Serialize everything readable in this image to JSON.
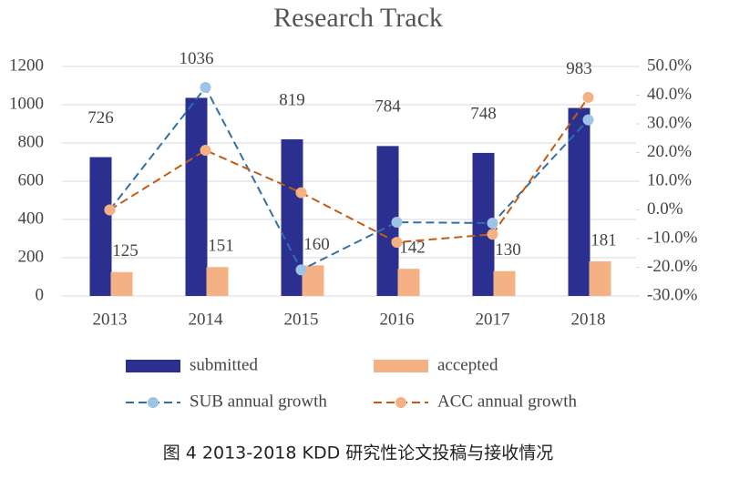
{
  "chart_data": {
    "type": "bar-line",
    "title": "Research Track",
    "categories": [
      "2013",
      "2014",
      "2015",
      "2016",
      "2017",
      "2018"
    ],
    "series": [
      {
        "name": "submitted",
        "type": "bar",
        "color": "#2b2f8f",
        "values": [
          726,
          1036,
          819,
          784,
          748,
          983
        ]
      },
      {
        "name": "accepted",
        "type": "bar",
        "color": "#f4b183",
        "values": [
          125,
          151,
          160,
          142,
          130,
          181
        ]
      },
      {
        "name": "SUB annual growth",
        "type": "line",
        "axis": "y2",
        "color": "#2e6fa8",
        "marker_color": "#9dc3e6",
        "values": [
          0,
          42.7,
          -20.9,
          -4.3,
          -4.6,
          31.4
        ]
      },
      {
        "name": "ACC annual growth",
        "type": "line",
        "axis": "y2",
        "color": "#c55a11",
        "marker_color": "#f4b183",
        "values": [
          0,
          20.8,
          6.0,
          -11.3,
          -8.5,
          39.2
        ]
      }
    ],
    "ylim": [
      0,
      1200
    ],
    "yticks": [
      0,
      200,
      400,
      600,
      800,
      1000,
      1200
    ],
    "y2lim": [
      -30,
      50
    ],
    "y2ticks": [
      {
        "value": -30,
        "label": "-30.0%"
      },
      {
        "value": -20,
        "label": "-20.0%"
      },
      {
        "value": -10,
        "label": "-10.0%"
      },
      {
        "value": 0,
        "label": "0.0%"
      },
      {
        "value": 10,
        "label": "10.0%"
      },
      {
        "value": 20,
        "label": "20.0%"
      },
      {
        "value": 30,
        "label": "30.0%"
      },
      {
        "value": 40,
        "label": "40.0%"
      },
      {
        "value": 50,
        "label": "50.0%"
      }
    ],
    "grid": true
  },
  "caption": "图 4 2013-2018 KDD 研究性论文投稿与接收情况"
}
